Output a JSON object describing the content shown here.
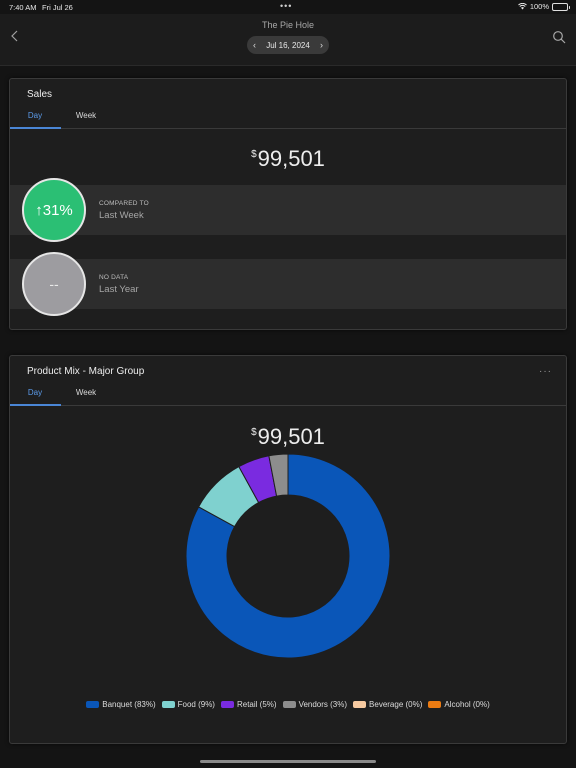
{
  "status_bar": {
    "time": "7:40 AM",
    "date": "Fri Jul 26",
    "battery": "100%",
    "multitask_dots": "•••"
  },
  "nav": {
    "title": "The Pie Hole",
    "date": "Jul 16, 2024",
    "prev_icon": "chevron-left-icon",
    "next_icon": "chevron-right-icon",
    "back_icon": "chevron-left-icon",
    "search_icon": "search-icon"
  },
  "sales": {
    "title": "Sales",
    "tabs": [
      {
        "label": "Day",
        "active": true
      },
      {
        "label": "Week",
        "active": false
      }
    ],
    "currency_symbol": "$",
    "amount": "99,501",
    "comparisons": [
      {
        "badge": "↑31%",
        "label": "COMPARED TO",
        "value": "Last Week",
        "color": "#2bbf74"
      },
      {
        "badge": "--",
        "label": "NO DATA",
        "value": "Last Year",
        "color": "#9d9ca0"
      }
    ]
  },
  "product_mix": {
    "title": "Product Mix - Major Group",
    "more": "···",
    "tabs": [
      {
        "label": "Day",
        "active": true
      },
      {
        "label": "Week",
        "active": false
      }
    ],
    "currency_symbol": "$",
    "amount": "99,501"
  },
  "chart_data": {
    "type": "pie",
    "donut": true,
    "categories": [
      "Banquet",
      "Food",
      "Retail",
      "Vendors",
      "Beverage",
      "Alcohol"
    ],
    "values": [
      83,
      9,
      5,
      3,
      0,
      0
    ],
    "legend_labels": [
      "Banquet (83%)",
      "Food (9%)",
      "Retail (5%)",
      "Vendors (3%)",
      "Beverage (0%)",
      "Alcohol (0%)"
    ],
    "colors": [
      "#0a56b8",
      "#7fd1cf",
      "#7a2be0",
      "#8d8d8d",
      "#f6c9a0",
      "#ec7b12"
    ],
    "legend_position": "bottom"
  }
}
